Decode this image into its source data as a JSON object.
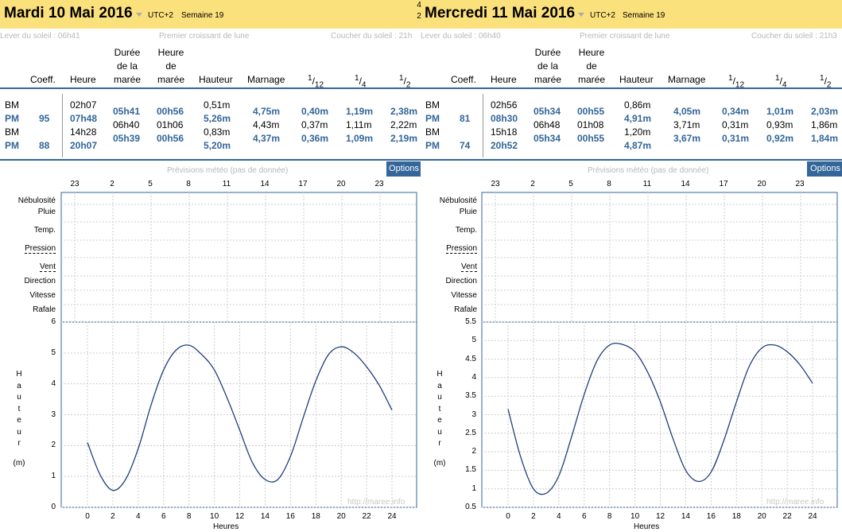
{
  "pager": {
    "top": "4",
    "bottom": "2"
  },
  "days": [
    {
      "title": "Mardi 10 Mai 2016",
      "utc": "UTC+2",
      "week": "Semaine 19",
      "sunrise": "Lever du soleil : 06h41",
      "moon": "Premier croissant de lune",
      "sunset": "Coucher du soleil : 21h",
      "headers": {
        "coeff": "Coeff.",
        "heure": "Heure",
        "duree": [
          "Durée",
          "de la",
          "marée"
        ],
        "heure_maree": [
          "Heure",
          "de",
          "marée"
        ],
        "hauteur": "Hauteur",
        "marnage": "Marnage",
        "f12": "12",
        "f4": "4",
        "f2": "2"
      },
      "tides": [
        {
          "type": "BM",
          "coeff": "",
          "heure": "02h07",
          "hauteur": "0,51m"
        },
        {
          "type": "PM",
          "coeff": "95",
          "heure": "07h48",
          "hauteur": "5,26m"
        },
        {
          "type": "BM",
          "coeff": "",
          "heure": "14h28",
          "hauteur": "0,83m"
        },
        {
          "type": "PM",
          "coeff": "88",
          "heure": "20h07",
          "hauteur": "5,20m"
        }
      ],
      "intervals": [
        {
          "duree": "05h41",
          "heure": "00h56",
          "marnage": "4,75m",
          "f12": "0,40m",
          "f4": "1,19m",
          "f2": "2,38m"
        },
        {
          "duree": "06h40",
          "heure": "01h06",
          "marnage": "4,43m",
          "f12": "0,37m",
          "f4": "1,11m",
          "f2": "2,22m"
        },
        {
          "duree": "05h39",
          "heure": "00h56",
          "marnage": "4,37m",
          "f12": "0,36m",
          "f4": "1,09m",
          "f2": "2,19m"
        }
      ],
      "meteo_title": "Prévisions météo (pas de donnée)",
      "options": "Options",
      "top_ticks": [
        "23",
        "2",
        "5",
        "8",
        "11",
        "14",
        "17",
        "20",
        "23"
      ],
      "rows": [
        "Nébulosité",
        "Pluie",
        "Temp.",
        "Pression",
        "Vent",
        "Direction",
        "Vitesse",
        "Rafale"
      ],
      "chart_data": {
        "type": "line",
        "x": [
          0,
          1,
          2,
          3,
          4,
          5,
          6,
          7,
          8,
          9,
          10,
          11,
          12,
          13,
          14,
          15,
          16,
          17,
          18,
          19,
          20,
          21,
          22,
          23,
          24
        ],
        "series": [
          {
            "values": [
              2.1,
              1.05,
              0.55,
              0.9,
              1.9,
              3.3,
              4.45,
              5.1,
              5.25,
              4.95,
              4.45,
              3.55,
              2.5,
              1.45,
              0.9,
              0.9,
              1.65,
              2.9,
              4.1,
              4.95,
              5.2,
              5.0,
              4.55,
              3.95,
              3.15
            ]
          }
        ],
        "ylim": [
          0,
          6
        ],
        "y_ticks": [
          "0",
          "1",
          "2",
          "3",
          "4",
          "5",
          "6"
        ],
        "x_ticks": [
          "0",
          "2",
          "4",
          "6",
          "8",
          "10",
          "12",
          "14",
          "16",
          "18",
          "20",
          "22",
          "24"
        ],
        "ylabel_letters": [
          "H",
          "a",
          "u",
          "t",
          "e",
          "u",
          "r"
        ],
        "yunit": "(m)",
        "xlabel": "Heures"
      },
      "watermark": "http://maree.info"
    },
    {
      "title": "Mercredi 11 Mai 2016",
      "utc": "UTC+2",
      "week": "Semaine 19",
      "sunrise": "Lever du soleil : 06h40",
      "moon": "Premier croissant de lune",
      "sunset": "Coucher du soleil : 21h3",
      "headers": {
        "coeff": "Coeff.",
        "heure": "Heure",
        "duree": [
          "Durée",
          "de la",
          "marée"
        ],
        "heure_maree": [
          "Heure",
          "de",
          "marée"
        ],
        "hauteur": "Hauteur",
        "marnage": "Marnage",
        "f12": "12",
        "f4": "4",
        "f2": "2"
      },
      "tides": [
        {
          "type": "BM",
          "coeff": "",
          "heure": "02h56",
          "hauteur": "0,86m"
        },
        {
          "type": "PM",
          "coeff": "81",
          "heure": "08h30",
          "hauteur": "4,91m"
        },
        {
          "type": "BM",
          "coeff": "",
          "heure": "15h18",
          "hauteur": "1,20m"
        },
        {
          "type": "PM",
          "coeff": "74",
          "heure": "20h52",
          "hauteur": "4,87m"
        }
      ],
      "intervals": [
        {
          "duree": "05h34",
          "heure": "00h55",
          "marnage": "4,05m",
          "f12": "0,34m",
          "f4": "1,01m",
          "f2": "2,03m"
        },
        {
          "duree": "06h48",
          "heure": "01h08",
          "marnage": "3,71m",
          "f12": "0,31m",
          "f4": "0,93m",
          "f2": "1,86m"
        },
        {
          "duree": "05h34",
          "heure": "00h55",
          "marnage": "3,67m",
          "f12": "0,31m",
          "f4": "0,92m",
          "f2": "1,84m"
        }
      ],
      "meteo_title": "Prévisions météo (pas de donnée)",
      "options": "Options",
      "top_ticks": [
        "23",
        "2",
        "5",
        "8",
        "11",
        "14",
        "17",
        "20",
        "23"
      ],
      "rows": [
        "Nébulosité",
        "Pluie",
        "Temp.",
        "Pression",
        "Vent",
        "Direction",
        "Vitesse",
        "Rafale"
      ],
      "chart_data": {
        "type": "line",
        "x": [
          0,
          1,
          2,
          3,
          4,
          5,
          6,
          7,
          8,
          9,
          10,
          11,
          12,
          13,
          14,
          15,
          16,
          17,
          18,
          19,
          20,
          21,
          22,
          23,
          24
        ],
        "series": [
          {
            "values": [
              3.15,
              1.85,
              1.0,
              0.88,
              1.35,
              2.4,
              3.55,
              4.45,
              4.88,
              4.9,
              4.7,
              4.15,
              3.35,
              2.35,
              1.5,
              1.2,
              1.45,
              2.3,
              3.35,
              4.3,
              4.8,
              4.88,
              4.7,
              4.35,
              3.85
            ]
          }
        ],
        "ylim": [
          0.5,
          5.5
        ],
        "y_ticks": [
          "0.5",
          "1",
          "1.5",
          "2",
          "2.5",
          "3",
          "3.5",
          "4",
          "4.5",
          "5",
          "5.5"
        ],
        "x_ticks": [
          "0",
          "2",
          "4",
          "6",
          "8",
          "10",
          "12",
          "14",
          "16",
          "18",
          "20",
          "22",
          "24"
        ],
        "ylabel_letters": [
          "H",
          "a",
          "u",
          "t",
          "e",
          "u",
          "r"
        ],
        "yunit": "(m)",
        "xlabel": "Heures"
      },
      "watermark": "http://maree.info"
    }
  ]
}
